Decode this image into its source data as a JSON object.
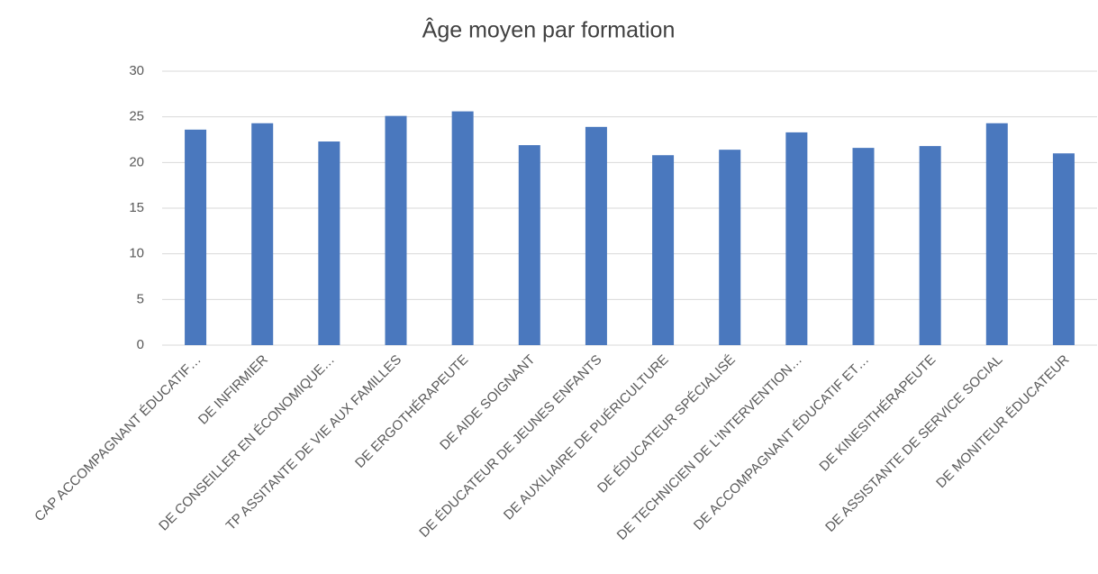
{
  "chart_data": {
    "type": "bar",
    "title": "Âge moyen par formation",
    "categories": [
      "CAP ACCOMPAGNANT ÉDUCATIF…",
      "DE INFIRMIER",
      "DE CONSEILLER EN ÉCONOMIQUE…",
      "TP ASSITANTE DE VIE AUX FAMILLES",
      "DE ERGOTHÉRAPEUTE",
      "DE AIDE SOIGNANT",
      "DE ÉDUCATEUR DE JEUNES ENFANTS",
      "DE AUXILIAIRE DE PUÉRICULTURE",
      "DE ÉDUCATEUR SPÉCIALISÉ",
      "DE TECHNICIEN DE L'INTERVENTION…",
      "DE ACCOMPAGNANT ÉDUCATIF ET…",
      "DE KINESITHÉRAPEUTE",
      "DE ASSISTANTE DE SERVICE SOCIAL",
      "DE MONITEUR ÉDUCATEUR"
    ],
    "values": [
      23.6,
      24.3,
      22.3,
      25.1,
      25.6,
      21.9,
      23.9,
      20.8,
      21.4,
      23.3,
      21.6,
      21.8,
      24.3,
      21.0
    ],
    "color": "#4a78be",
    "ylim": [
      0,
      30
    ],
    "yticks": [
      0,
      5,
      10,
      15,
      20,
      25,
      30
    ],
    "grid": true
  }
}
